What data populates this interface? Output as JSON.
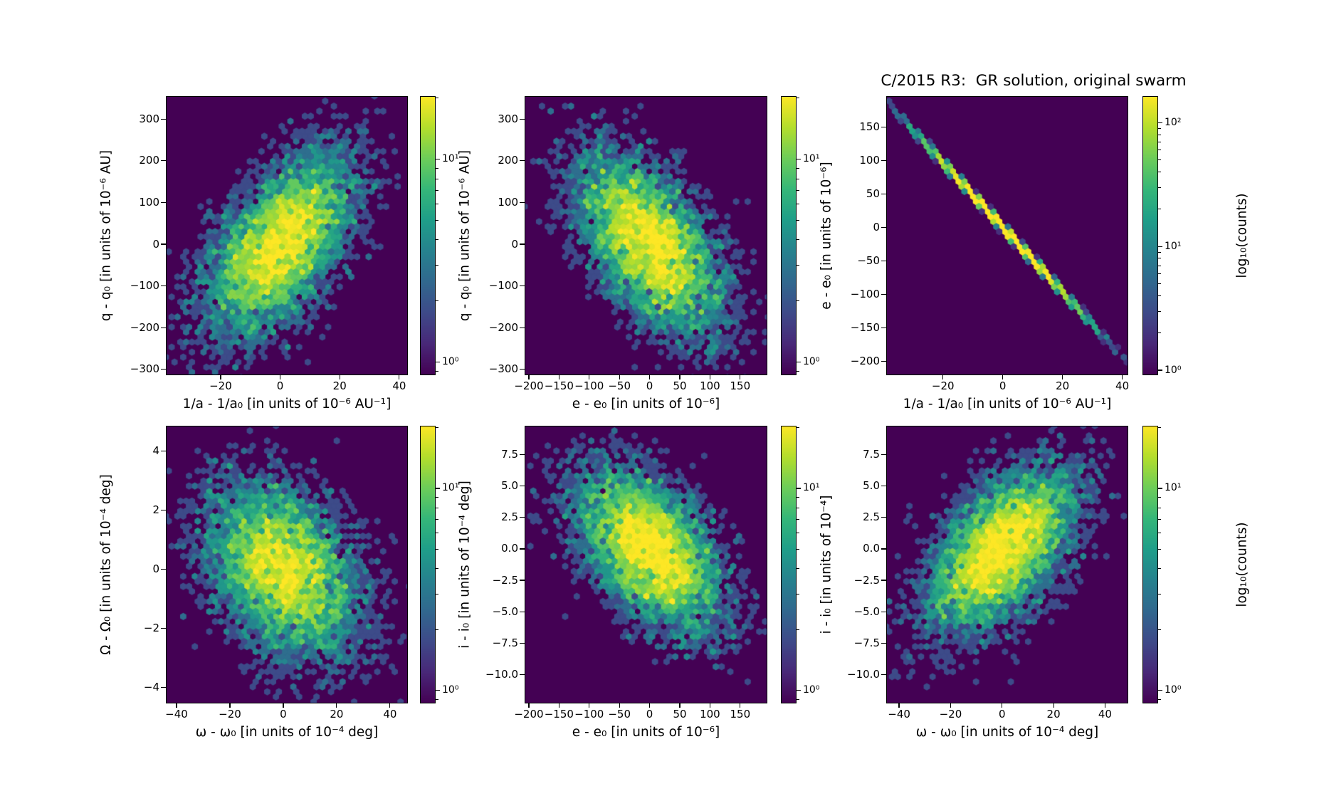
{
  "title": "C/2015 R3:  GR solution, original swarm",
  "colors": {
    "figure_bg": "#ffffff",
    "panel_bg": "#440154",
    "text": "#000000",
    "viridis": [
      "#440154",
      "#482878",
      "#3e4a89",
      "#31688e",
      "#26828e",
      "#1f9e89",
      "#35b779",
      "#6dcd59",
      "#b4de2c",
      "#fde725"
    ]
  },
  "chart_data": {
    "type": "heatmap",
    "subtype": "hexbin-density-2d",
    "figure_title": "C/2015 R3:  GR solution, original swarm",
    "value_encoding": "log10(counts) of orbital-clone swarm, viridis colormap",
    "colorbar_label": "log₁₀(counts)",
    "panels": [
      {
        "position": "top-left",
        "xlabel": "1/a - 1/a₀ [in units of 10⁻⁶ AU⁻¹]",
        "ylabel": "q - q₀ [in units of 10⁻⁶ AU]",
        "xlim": [
          -38.4,
          42.9
        ],
        "ylim": [
          -314,
          355
        ],
        "xticks": [
          {
            "v": -20,
            "l": "−20"
          },
          {
            "v": 0,
            "l": "0"
          },
          {
            "v": 20,
            "l": "20"
          },
          {
            "v": 40,
            "l": "40"
          }
        ],
        "yticks": [
          {
            "v": 300,
            "l": "300"
          },
          {
            "v": 200,
            "l": "200"
          },
          {
            "v": 100,
            "l": "100"
          },
          {
            "v": 0,
            "l": "0"
          },
          {
            "v": -100,
            "l": "−100"
          },
          {
            "v": -200,
            "l": "−200"
          },
          {
            "v": -300,
            "l": "−300"
          }
        ],
        "dist": {
          "kind": "cloud",
          "n": 6000,
          "sx": 12,
          "sy": 105,
          "rho": 0.55,
          "seed": 101,
          "vmax": 20
        },
        "colorbar": {
          "log_min": -0.065,
          "log_max": 1.31,
          "ticks": [
            {
              "v": 10,
              "l": "10¹"
            },
            {
              "v": 1,
              "l": "10⁰"
            }
          ],
          "label": null
        }
      },
      {
        "position": "top-middle",
        "xlabel": "e - e₀ [in units of 10⁻⁶]",
        "ylabel": "q - q₀ [in units of 10⁻⁶ AU]",
        "xlim": [
          -207,
          195
        ],
        "ylim": [
          -314,
          355
        ],
        "xticks": [
          {
            "v": -200,
            "l": "−200"
          },
          {
            "v": -150,
            "l": "−150"
          },
          {
            "v": -100,
            "l": "−100"
          },
          {
            "v": -50,
            "l": "−50"
          },
          {
            "v": 0,
            "l": "0"
          },
          {
            "v": 50,
            "l": "50"
          },
          {
            "v": 100,
            "l": "100"
          },
          {
            "v": 150,
            "l": "150"
          }
        ],
        "yticks": [
          {
            "v": 300,
            "l": "300"
          },
          {
            "v": 200,
            "l": "200"
          },
          {
            "v": 100,
            "l": "100"
          },
          {
            "v": 0,
            "l": "0"
          },
          {
            "v": -100,
            "l": "−100"
          },
          {
            "v": -200,
            "l": "−200"
          },
          {
            "v": -300,
            "l": "−300"
          }
        ],
        "dist": {
          "kind": "cloud",
          "n": 6000,
          "sx": 58,
          "sy": 105,
          "rho": -0.55,
          "seed": 202,
          "vmax": 20
        },
        "colorbar": {
          "log_min": -0.065,
          "log_max": 1.31,
          "ticks": [
            {
              "v": 10,
              "l": "10¹"
            },
            {
              "v": 1,
              "l": "10⁰"
            }
          ],
          "label": null
        }
      },
      {
        "position": "top-right",
        "xlabel": "1/a - 1/a₀ [in units of 10⁻⁶ AU⁻¹]",
        "ylabel": "e - e₀ [in units of 10⁻⁶]",
        "xlim": [
          -39,
          42
        ],
        "ylim": [
          -221,
          196
        ],
        "xticks": [
          {
            "v": -20,
            "l": "−20"
          },
          {
            "v": 0,
            "l": "0"
          },
          {
            "v": 20,
            "l": "20"
          },
          {
            "v": 40,
            "l": "40"
          }
        ],
        "yticks": [
          {
            "v": 150,
            "l": "150"
          },
          {
            "v": 100,
            "l": "100"
          },
          {
            "v": 50,
            "l": "50"
          },
          {
            "v": 0,
            "l": "0"
          },
          {
            "v": -50,
            "l": "−50"
          },
          {
            "v": -100,
            "l": "−100"
          },
          {
            "v": -150,
            "l": "−150"
          },
          {
            "v": -200,
            "l": "−200"
          }
        ],
        "dist": {
          "kind": "line",
          "n": 8000,
          "sx": 12.5,
          "slope": -4.85,
          "noise": 1.5,
          "seed": 303,
          "vmax": 163
        },
        "colorbar": {
          "log_min": -0.04,
          "log_max": 2.214,
          "ticks": [
            {
              "v": 100,
              "l": "10²"
            },
            {
              "v": 10,
              "l": "10¹"
            },
            {
              "v": 1,
              "l": "10⁰"
            }
          ],
          "label": "log₁₀(counts)"
        }
      },
      {
        "position": "bottom-left",
        "xlabel": "ω - ω₀ [in units of 10⁻⁴ deg]",
        "ylabel": "Ω - Ω₀ [in units of 10⁻⁴ deg]",
        "xlim": [
          -44,
          46.7
        ],
        "ylim": [
          -4.55,
          4.85
        ],
        "xticks": [
          {
            "v": -40,
            "l": "−40"
          },
          {
            "v": -20,
            "l": "−20"
          },
          {
            "v": 0,
            "l": "0"
          },
          {
            "v": 20,
            "l": "20"
          },
          {
            "v": 40,
            "l": "40"
          }
        ],
        "yticks": [
          {
            "v": 4,
            "l": "4"
          },
          {
            "v": 2,
            "l": "2"
          },
          {
            "v": 0,
            "l": "0"
          },
          {
            "v": -2,
            "l": "−2"
          },
          {
            "v": -4,
            "l": "−4"
          }
        ],
        "dist": {
          "kind": "cloud",
          "n": 6000,
          "sx": 14,
          "sy": 1.45,
          "rho": -0.35,
          "seed": 404,
          "vmax": 20
        },
        "colorbar": {
          "log_min": -0.065,
          "log_max": 1.31,
          "ticks": [
            {
              "v": 10,
              "l": "10¹"
            },
            {
              "v": 1,
              "l": "10⁰"
            }
          ],
          "label": null
        }
      },
      {
        "position": "bottom-middle",
        "xlabel": "e - e₀ [in units of 10⁻⁶]",
        "ylabel": "i - i₀ [in units of 10⁻⁴ deg]",
        "xlim": [
          -207,
          195
        ],
        "ylim": [
          -12.3,
          9.8
        ],
        "xticks": [
          {
            "v": -200,
            "l": "−200"
          },
          {
            "v": -150,
            "l": "−150"
          },
          {
            "v": -100,
            "l": "−100"
          },
          {
            "v": -50,
            "l": "−50"
          },
          {
            "v": 0,
            "l": "0"
          },
          {
            "v": 50,
            "l": "50"
          },
          {
            "v": 100,
            "l": "100"
          },
          {
            "v": 150,
            "l": "150"
          }
        ],
        "yticks": [
          {
            "v": 7.5,
            "l": "7.5"
          },
          {
            "v": 5.0,
            "l": "5.0"
          },
          {
            "v": 2.5,
            "l": "2.5"
          },
          {
            "v": 0.0,
            "l": "0.0"
          },
          {
            "v": -2.5,
            "l": "−2.5"
          },
          {
            "v": -5.0,
            "l": "−5.0"
          },
          {
            "v": -7.5,
            "l": "−7.5"
          },
          {
            "v": -10.0,
            "l": "−10.0"
          }
        ],
        "dist": {
          "kind": "cloud",
          "n": 6000,
          "sx": 58,
          "sy": 3.1,
          "rho": -0.5,
          "seed": 505,
          "vmax": 20
        },
        "colorbar": {
          "log_min": -0.065,
          "log_max": 1.31,
          "ticks": [
            {
              "v": 10,
              "l": "10¹"
            },
            {
              "v": 1,
              "l": "10⁰"
            }
          ],
          "label": null
        }
      },
      {
        "position": "bottom-right",
        "xlabel": "ω - ω₀ [in units of 10⁻⁴ deg]",
        "ylabel": "i - i₀ [in units of 10⁻⁴]",
        "xlim": [
          -45,
          49
        ],
        "ylim": [
          -12.3,
          9.8
        ],
        "xticks": [
          {
            "v": -40,
            "l": "−40"
          },
          {
            "v": -20,
            "l": "−20"
          },
          {
            "v": 0,
            "l": "0"
          },
          {
            "v": 20,
            "l": "20"
          },
          {
            "v": 40,
            "l": "40"
          }
        ],
        "yticks": [
          {
            "v": 7.5,
            "l": "7.5"
          },
          {
            "v": 5.0,
            "l": "5.0"
          },
          {
            "v": 2.5,
            "l": "2.5"
          },
          {
            "v": 0.0,
            "l": "0.0"
          },
          {
            "v": -2.5,
            "l": "−2.5"
          },
          {
            "v": -5.0,
            "l": "−5.0"
          },
          {
            "v": -7.5,
            "l": "−7.5"
          },
          {
            "v": -10.0,
            "l": "−10.0"
          }
        ],
        "dist": {
          "kind": "cloud",
          "n": 6000,
          "sx": 14,
          "sy": 3.2,
          "rho": 0.55,
          "seed": 606,
          "vmax": 20
        },
        "colorbar": {
          "log_min": -0.065,
          "log_max": 1.31,
          "ticks": [
            {
              "v": 10,
              "l": "10¹"
            },
            {
              "v": 1,
              "l": "10⁰"
            }
          ],
          "label": "log₁₀(counts)"
        }
      }
    ]
  }
}
